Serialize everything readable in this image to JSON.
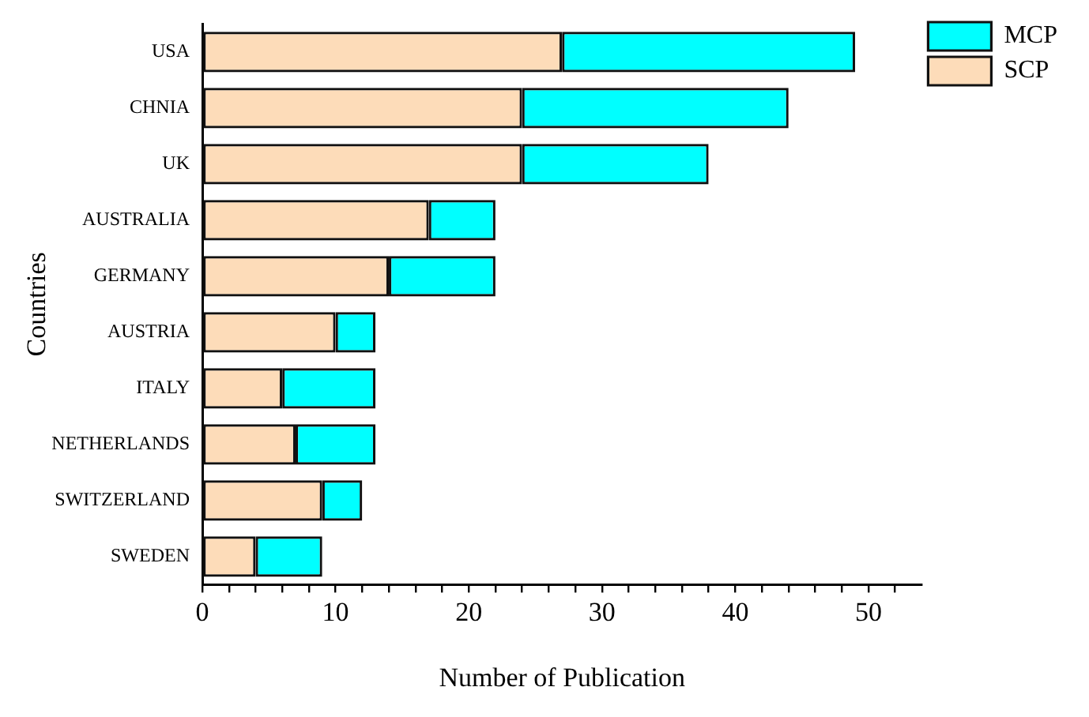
{
  "chart_data": {
    "type": "bar",
    "orientation": "horizontal",
    "stacked": true,
    "xlabel": "Number of Publication",
    "ylabel": "Countries",
    "categories": [
      "USA",
      "CHNIA",
      "UK",
      "AUSTRALIA",
      "GERMANY",
      "AUSTRIA",
      "ITALY",
      "NETHERLANDS",
      "SWITZERLAND",
      "SWEDEN"
    ],
    "series": [
      {
        "name": "SCP",
        "color": "#fddcb9",
        "values": [
          27,
          24,
          24,
          17,
          14,
          10,
          6,
          7,
          9,
          4
        ]
      },
      {
        "name": "MCP",
        "color": "#00ffff",
        "values": [
          22,
          20,
          14,
          5,
          8,
          3,
          7,
          6,
          3,
          5
        ]
      }
    ],
    "xlim": [
      0,
      54
    ],
    "xticks": [
      0,
      {
        "value": 2,
        "label": null
      },
      {
        "value": 4,
        "label": null
      },
      {
        "value": 6,
        "label": null
      },
      {
        "value": 8,
        "label": null
      },
      10,
      {
        "value": 12,
        "label": null
      },
      {
        "value": 14,
        "label": null
      },
      {
        "value": 16,
        "label": null
      },
      {
        "value": 18,
        "label": null
      },
      20,
      {
        "value": 22,
        "label": null
      },
      {
        "value": 24,
        "label": null
      },
      {
        "value": 26,
        "label": null
      },
      {
        "value": 28,
        "label": null
      },
      30,
      {
        "value": 32,
        "label": null
      },
      {
        "value": 34,
        "label": null
      },
      {
        "value": 36,
        "label": null
      },
      {
        "value": 38,
        "label": null
      },
      40,
      {
        "value": 42,
        "label": null
      },
      {
        "value": 44,
        "label": null
      },
      {
        "value": 46,
        "label": null
      },
      {
        "value": 48,
        "label": null
      },
      50,
      {
        "value": 52,
        "label": null
      }
    ],
    "grid": false,
    "legend": "top right"
  }
}
